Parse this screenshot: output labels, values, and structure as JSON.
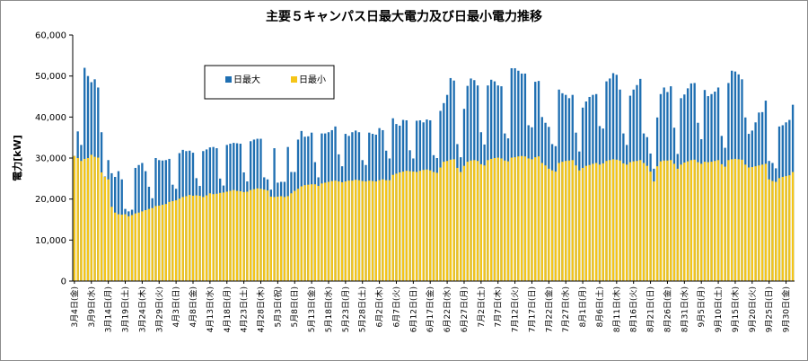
{
  "chart_data": {
    "type": "bar",
    "title": "主要５キャンパス日最大電力及び日最小電力推移",
    "ylabel": "電力[kW]",
    "xlabel": "",
    "ylim": [
      0,
      60000
    ],
    "yticks": [
      "0",
      "10,000",
      "20,000",
      "30,000",
      "40,000",
      "50,000",
      "60,000"
    ],
    "grid": false,
    "legend_position": "top-left-inside",
    "series": [
      {
        "name": "日最大",
        "color": "#1f6fb2"
      },
      {
        "name": "日最小",
        "color": "#f5c518"
      }
    ],
    "x_tick_labels": [
      "3月4日(金)",
      "3月9日(水)",
      "3月14日(月)",
      "3月19日(土)",
      "3月24日(木)",
      "3月29日(火)",
      "4月3日(日)",
      "4月8日(金)",
      "4月13日(水)",
      "4月18日(月)",
      "4月23日(土)",
      "4月28日(木)",
      "5月3日(祝)",
      "5月8日(日)",
      "5月13日(金)",
      "5月18日(水)",
      "5月23日(月)",
      "5月28日(土)",
      "6月2日(木)",
      "6月7日(火)",
      "6月12日(日)",
      "6月17日(金)",
      "6月22日(水)",
      "6月27日(月)",
      "7月2日(土)",
      "7月7日(木)",
      "7月12日(火)",
      "7月17日(日)",
      "7月22日(金)",
      "7月27日(水)",
      "8月1日(月)",
      "8月6日(土)",
      "8月11日(木)",
      "8月16日(火)",
      "8月21日(日)",
      "8月26日(金)",
      "8月31日(水)",
      "9月5日(月)",
      "9月10日(土)",
      "9月15日(木)",
      "9月20日(火)",
      "9月25日(日)",
      "9月30日(金)"
    ],
    "max_values": [
      30500,
      36500,
      33200,
      52000,
      50000,
      48500,
      49200,
      47200,
      36300,
      25500,
      29500,
      26300,
      25400,
      26800,
      24800,
      17600,
      17000,
      17400,
      27600,
      28300,
      28800,
      26800,
      23000,
      20200,
      30000,
      29500,
      29400,
      29500,
      29800,
      23500,
      22500,
      31200,
      32000,
      31700,
      31800,
      31300,
      25100,
      23200,
      31700,
      32100,
      32600,
      32700,
      32400,
      25000,
      23300,
      33200,
      33500,
      33700,
      33600,
      33500,
      26500,
      24300,
      34100,
      34500,
      34700,
      34700,
      25300,
      24800,
      22300,
      32400,
      24000,
      24200,
      24200,
      32700,
      26600,
      26600,
      34500,
      36600,
      35200,
      35300,
      36200,
      29000,
      25300,
      36000,
      36000,
      36300,
      36800,
      37700,
      30900,
      28000,
      35900,
      35400,
      36300,
      36700,
      36300,
      29500,
      28300,
      36200,
      35900,
      35700,
      37300,
      36800,
      31800,
      29900,
      39700,
      38300,
      37900,
      39300,
      39200,
      31900,
      29900,
      39100,
      39200,
      38700,
      39400,
      39200,
      30700,
      30000,
      41500,
      43400,
      45400,
      49500,
      48900,
      33400,
      30200,
      42000,
      47600,
      49400,
      49000,
      47700,
      36300,
      33300,
      47700,
      49100,
      48700,
      47700,
      47500,
      36000,
      34800,
      51900,
      51900,
      51300,
      50600,
      50600,
      38000,
      37500,
      48600,
      48800,
      40000,
      38600,
      37600,
      33400,
      32900,
      46700,
      45800,
      45400,
      44600,
      45400,
      36200,
      31600,
      42300,
      43800,
      44900,
      45400,
      45600,
      37800,
      37200,
      48700,
      49400,
      50700,
      50300,
      46700,
      36000,
      33200,
      45200,
      46700,
      47800,
      49300,
      36000,
      35100,
      31100,
      27400,
      39900,
      45600,
      47200,
      46100,
      47500,
      37400,
      31000,
      44600,
      45500,
      47000,
      48200,
      48300,
      38600,
      34600,
      46600,
      45100,
      45600,
      46200,
      47200,
      35400,
      32500,
      48300,
      51300,
      51100,
      50400,
      49200,
      39900,
      35900,
      36700,
      38700,
      41100,
      41200,
      44000,
      29300,
      28800,
      27500,
      37700,
      38000,
      38700,
      39300,
      43000
    ],
    "min_values": [
      30500,
      30000,
      29300,
      29800,
      30000,
      30800,
      30300,
      30100,
      26500,
      25400,
      24800,
      18100,
      16700,
      16300,
      16200,
      16300,
      15800,
      16100,
      16500,
      16700,
      17000,
      17300,
      17600,
      17800,
      18300,
      18400,
      18600,
      18800,
      19300,
      19500,
      19700,
      20100,
      20500,
      20700,
      21000,
      20800,
      20900,
      20800,
      20500,
      20900,
      21400,
      21200,
      21300,
      21500,
      21600,
      21800,
      22000,
      22200,
      22000,
      21900,
      21700,
      21800,
      22200,
      22400,
      22600,
      22500,
      22300,
      22100,
      20600,
      20500,
      20600,
      20700,
      20500,
      20700,
      21400,
      22000,
      22500,
      23100,
      23400,
      23500,
      23600,
      23600,
      23200,
      23800,
      24000,
      24200,
      24400,
      24500,
      24300,
      24100,
      24300,
      24500,
      24500,
      24700,
      24600,
      24400,
      24300,
      24500,
      24400,
      24300,
      24600,
      24800,
      24600,
      24600,
      25900,
      26200,
      26500,
      26700,
      26900,
      26800,
      26700,
      26600,
      26900,
      27100,
      27200,
      27000,
      26600,
      26400,
      27700,
      29100,
      29300,
      29600,
      29700,
      27600,
      26600,
      28100,
      29100,
      29400,
      29500,
      29300,
      28500,
      28200,
      29500,
      29800,
      30000,
      30100,
      29900,
      29400,
      29200,
      30100,
      30200,
      30400,
      30500,
      30400,
      29900,
      29700,
      30200,
      30400,
      28800,
      28200,
      27400,
      27000,
      26700,
      28800,
      29100,
      29300,
      29400,
      29500,
      28200,
      27000,
      27600,
      28100,
      28300,
      28600,
      28800,
      28400,
      28700,
      29300,
      29500,
      29700,
      29600,
      29400,
      28700,
      28400,
      29000,
      29200,
      29300,
      29500,
      28800,
      28100,
      26700,
      24300,
      28000,
      29200,
      29400,
      29400,
      29500,
      28600,
      27400,
      28400,
      28900,
      29200,
      29500,
      29600,
      29000,
      28600,
      29100,
      29000,
      29100,
      29300,
      29500,
      28500,
      27900,
      29500,
      29700,
      29800,
      29700,
      29600,
      28400,
      27700,
      27800,
      28000,
      28200,
      28400,
      28600,
      24800,
      24400,
      24200,
      25100,
      25400,
      25600,
      25800,
      26600
    ]
  }
}
